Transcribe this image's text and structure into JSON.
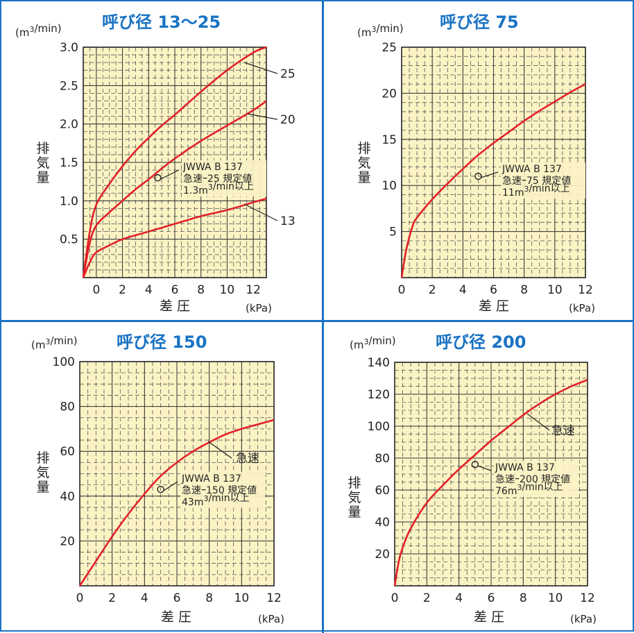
{
  "colors": {
    "frame": "#1a73c4",
    "plot_bg": "#fbf3c4",
    "curve": "#e3202a",
    "title": "#1a73c4"
  },
  "chart_data": [
    {
      "type": "line",
      "title": "呼び径 13〜25",
      "unit_label": "(m³/min)",
      "ylabel": "排気量",
      "xlabel": "差 圧",
      "xunit": "(kPa)",
      "xlim": [
        -1,
        13
      ],
      "ylim": [
        0,
        3.0
      ],
      "xticks": [
        0,
        2,
        4,
        6,
        8,
        10,
        12
      ],
      "yticks": [
        0.5,
        1.0,
        1.5,
        2.0,
        2.5,
        3.0
      ],
      "ytick_labels": [
        "0.5",
        "1.0",
        "1.5",
        "2.0",
        "2.5",
        "3.0"
      ],
      "x_minor": 0.5,
      "y_minor": 0.1,
      "series": [
        {
          "name": "25",
          "x": [
            -1,
            -0.5,
            0,
            1,
            2,
            3,
            4,
            5,
            6,
            8,
            10,
            12,
            13
          ],
          "values": [
            0,
            0.6,
            0.95,
            1.22,
            1.45,
            1.65,
            1.82,
            1.98,
            2.12,
            2.42,
            2.7,
            2.93,
            3.0
          ]
        },
        {
          "name": "20",
          "x": [
            -1,
            -0.5,
            0,
            1,
            2,
            3,
            4,
            5,
            6,
            8,
            10,
            12,
            13
          ],
          "values": [
            0,
            0.45,
            0.68,
            0.85,
            1.0,
            1.15,
            1.28,
            1.42,
            1.55,
            1.78,
            1.98,
            2.18,
            2.3
          ]
        },
        {
          "name": "13",
          "x": [
            -1,
            -0.5,
            0,
            1,
            2,
            4,
            6,
            8,
            10,
            12,
            13
          ],
          "values": [
            0,
            0.2,
            0.33,
            0.42,
            0.5,
            0.6,
            0.7,
            0.8,
            0.88,
            0.98,
            1.03
          ]
        }
      ],
      "annotation": {
        "point": [
          4.7,
          1.3
        ],
        "lines": [
          "JWWA B 137",
          "急速ｰ25 規定値",
          "1.3m³/min以上"
        ]
      }
    },
    {
      "type": "line",
      "title": "呼び径 75",
      "unit_label": "(m³/min)",
      "ylabel": "排気量",
      "xlabel": "差 圧",
      "xunit": "(kPa)",
      "xlim": [
        0,
        12
      ],
      "ylim": [
        0,
        25
      ],
      "xticks": [
        0,
        2,
        4,
        6,
        8,
        10,
        12
      ],
      "yticks": [
        5,
        10,
        15,
        20,
        25
      ],
      "ytick_labels": [
        "5",
        "10",
        "15",
        "20",
        "25"
      ],
      "x_minor": 0.5,
      "y_minor": 1,
      "series": [
        {
          "name": "",
          "x": [
            0,
            0.3,
            0.7,
            1,
            2,
            3,
            4,
            5,
            6,
            7,
            8,
            9,
            10,
            11,
            12
          ],
          "values": [
            0,
            3,
            5.5,
            6.5,
            8.5,
            10.2,
            11.8,
            13.3,
            14.6,
            15.8,
            17,
            18.1,
            19.1,
            20.1,
            21
          ]
        }
      ],
      "annotation": {
        "point": [
          5,
          11
        ],
        "lines": [
          "JWWA B 137",
          "急速ｰ75 規定値",
          "11m³/min以上"
        ]
      }
    },
    {
      "type": "line",
      "title": "呼び径 150",
      "unit_label": "(m³/min)",
      "ylabel": "排気量",
      "xlabel": "差 圧",
      "xunit": "(kPa)",
      "xlim": [
        0,
        12
      ],
      "ylim": [
        0,
        100
      ],
      "xticks": [
        0,
        2,
        4,
        6,
        8,
        10,
        12
      ],
      "yticks": [
        20,
        40,
        60,
        80,
        100
      ],
      "ytick_labels": [
        "20",
        "40",
        "60",
        "80",
        "100"
      ],
      "x_minor": 0.5,
      "y_minor": 5,
      "series": [
        {
          "name": "急速",
          "x": [
            0,
            1,
            2,
            3,
            4,
            5,
            6,
            7,
            8,
            9,
            10,
            11,
            12
          ],
          "values": [
            0,
            11,
            22,
            32,
            41,
            49,
            55,
            60,
            64,
            67.5,
            70,
            72,
            74
          ]
        }
      ],
      "annotation": {
        "point": [
          5,
          43
        ],
        "lines": [
          "JWWA B 137",
          "急速ｰ150 規定値",
          "43m³/min以上"
        ]
      }
    },
    {
      "type": "line",
      "title": "呼び径 200",
      "unit_label": "(m³/min)",
      "ylabel": "排気量",
      "xlabel": "差 圧",
      "xunit": "(kPa)",
      "xlim": [
        0,
        12
      ],
      "ylim": [
        0,
        140
      ],
      "xticks": [
        0,
        2,
        4,
        6,
        8,
        10,
        12
      ],
      "yticks": [
        20,
        40,
        60,
        80,
        100,
        120,
        140
      ],
      "ytick_labels": [
        "20",
        "40",
        "60",
        "80",
        "100",
        "120",
        "140"
      ],
      "x_minor": 0.5,
      "y_minor": 5,
      "series": [
        {
          "name": "急速",
          "x": [
            0,
            0.25,
            0.5,
            1,
            2,
            3,
            4,
            5,
            6,
            7,
            8,
            9,
            10,
            11,
            12
          ],
          "values": [
            0,
            15,
            24,
            36,
            52,
            63,
            73,
            82,
            91,
            99,
            107,
            114,
            120,
            125,
            129
          ]
        }
      ],
      "annotation": {
        "point": [
          5,
          76
        ],
        "lines": [
          "JWWA B 137",
          "急速ｰ200 規定値",
          "76m³/min以上"
        ]
      }
    }
  ]
}
